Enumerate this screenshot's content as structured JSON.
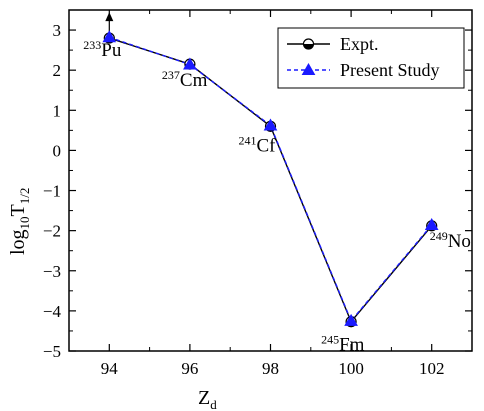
{
  "chart_data": {
    "type": "line",
    "x": [
      94,
      96,
      98,
      100,
      102
    ],
    "xlim": [
      93,
      103
    ],
    "ylim": [
      -5,
      3.5
    ],
    "xticks": [
      94,
      96,
      98,
      100,
      102
    ],
    "yticks": [
      3,
      2,
      1,
      0,
      -1,
      -2,
      -3,
      -4,
      -5
    ],
    "ytick_labels": [
      "3",
      "2",
      "1",
      "0",
      "−1",
      "−2",
      "−3",
      "−4",
      "−5"
    ],
    "xlabel": {
      "main": "Z",
      "sub": "d"
    },
    "ylabel": {
      "main": "log",
      "sub": "10",
      "mid": "T",
      "sub2": "1/2"
    },
    "series": [
      {
        "name": "Expt.",
        "values": [
          2.8,
          2.15,
          0.6,
          -4.27,
          -1.88
        ],
        "color": "#000000",
        "marker": "circle-half-filled",
        "line": "solid",
        "lower_limit_at_x": 94
      },
      {
        "name": "Present Study",
        "values": [
          2.82,
          2.14,
          0.62,
          -4.25,
          -1.86
        ],
        "color": "#1a1aff",
        "marker": "triangle",
        "line": "dashed"
      }
    ],
    "annotations": [
      {
        "sup": "233",
        "label": "Pu"
      },
      {
        "sup": "237",
        "label": "Cm"
      },
      {
        "sup": "241",
        "label": "Cf"
      },
      {
        "sup": "245",
        "label": "Fm"
      },
      {
        "sup": "249",
        "label": "No"
      }
    ],
    "legend_position": "top-right",
    "grid": false
  }
}
